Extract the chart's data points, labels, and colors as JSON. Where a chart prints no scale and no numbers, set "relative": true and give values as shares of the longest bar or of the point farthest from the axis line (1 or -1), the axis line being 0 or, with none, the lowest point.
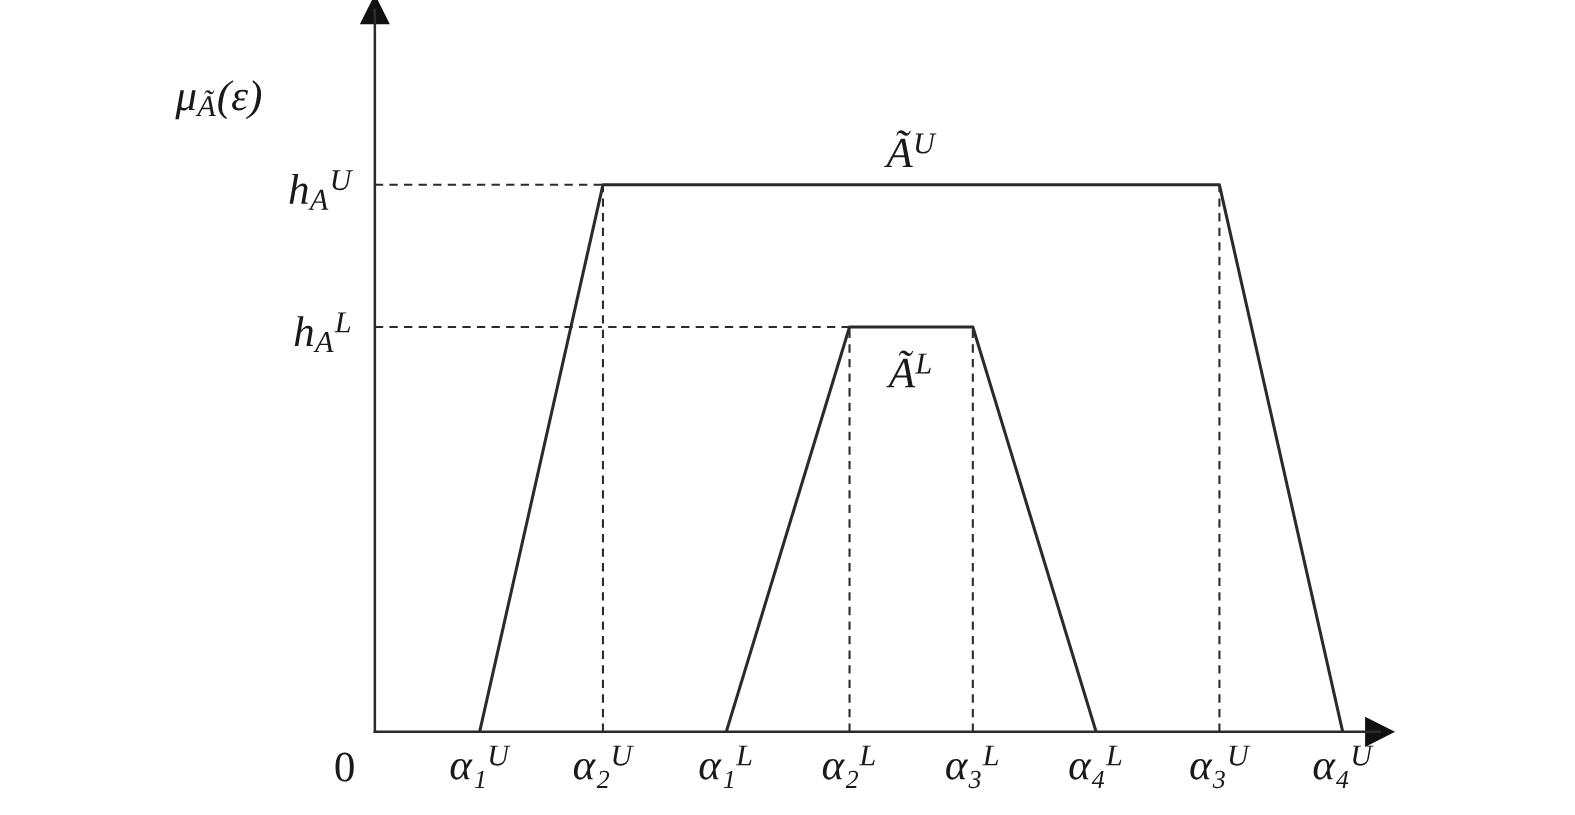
{
  "chart_data": {
    "type": "line",
    "relative": true,
    "ylabel": "μ$_{Ã}$(ε)",
    "categories": [
      "α₁$^{U}$",
      "α₂$^{U}$",
      "α₁$^{L}$",
      "α₂$^{L}$",
      "α₃$^{L}$",
      "α₄$^{L}$",
      "α₃$^{U}$",
      "α₄$^{U}$"
    ],
    "series": [
      {
        "name": "Ã$^{U}$",
        "color": "#2b2b2b",
        "x": [
          "α₁$^{U}$",
          "α₂$^{U}$",
          "α₃$^{U}$",
          "α₄$^{U}$"
        ],
        "values": [
          0,
          1,
          1,
          0
        ]
      },
      {
        "name": "Ã$^{L}$",
        "color": "#2b2b2b",
        "x": [
          "α₁$^{L}$",
          "α₂$^{L}$",
          "α₃$^{L}$",
          "α₄$^{L}$"
        ],
        "values": [
          0,
          0.74,
          0.74,
          0
        ]
      }
    ],
    "ref_lines": [
      {
        "axis": "y",
        "value": 1,
        "label": "h$_{A}$$^{U}$",
        "color": "#2b2b2b",
        "line_style": "dashed"
      },
      {
        "axis": "y",
        "value": 0.74,
        "label": "h$_{A}$$^{L}$",
        "color": "#2b2b2b",
        "line_style": "dashed"
      },
      {
        "axis": "x",
        "value": "α₂$^{U}$",
        "color": "#2b2b2b",
        "line_style": "dashed"
      },
      {
        "axis": "x",
        "value": "α₂$^{L}$",
        "color": "#2b2b2b",
        "line_style": "dashed"
      },
      {
        "axis": "x",
        "value": "α₃$^{L}$",
        "color": "#2b2b2b",
        "line_style": "dashed"
      },
      {
        "axis": "x",
        "value": "α₃$^{U}$",
        "color": "#2b2b2b",
        "line_style": "dashed"
      }
    ],
    "annotations": [
      "0"
    ],
    "line_style": "solid",
    "tick_labels": "x"
  }
}
